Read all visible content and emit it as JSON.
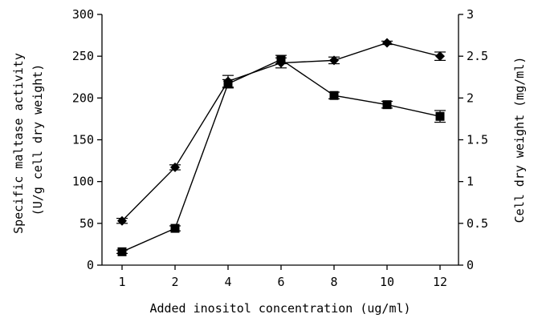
{
  "chart_data": {
    "type": "line",
    "title": "",
    "xlabel": "Added inositol concentration (ug/ml)",
    "ylabel": "Specific maltase activity (U/g cell dry weight)",
    "ylabel_lines": [
      "Specific maltase activity",
      "(U/g cell dry weight)"
    ],
    "y2label": "Cell dry weight (mg/ml)",
    "categories": [
      "1",
      "2",
      "4",
      "6",
      "8",
      "10",
      "12"
    ],
    "ylim": [
      0,
      300
    ],
    "y2lim": [
      0,
      3
    ],
    "y_ticks": [
      "0",
      "50",
      "100",
      "150",
      "200",
      "250",
      "300"
    ],
    "y2_ticks": [
      "0",
      "0.5",
      "1",
      "1.5",
      "2",
      "2.5",
      "3"
    ],
    "grid": false,
    "legend": "none",
    "series": [
      {
        "axis": "left",
        "marker": "diamond",
        "values": [
          53,
          117,
          220,
          242,
          245,
          266,
          250
        ],
        "errors": [
          3,
          3,
          7,
          6,
          4,
          2,
          5
        ],
        "color": "#000000"
      },
      {
        "axis": "right",
        "marker": "square",
        "values": [
          0.16,
          0.44,
          2.17,
          2.46,
          2.03,
          1.92,
          1.78
        ],
        "errors": [
          0.02,
          0.03,
          0.05,
          0.05,
          0.04,
          0.04,
          0.07
        ],
        "color": "#000000"
      }
    ]
  }
}
